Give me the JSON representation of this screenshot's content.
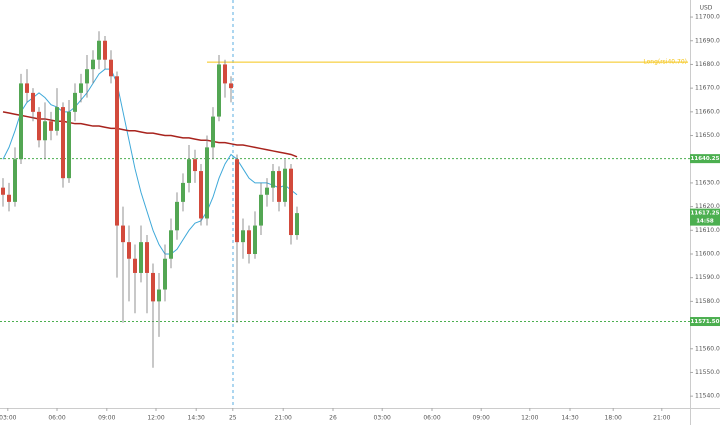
{
  "chart_data": {
    "type": "candlestick",
    "currency": "USD",
    "x": [
      0,
      1,
      2,
      3,
      4,
      5,
      6,
      7,
      8,
      9,
      10,
      11,
      12,
      13,
      14,
      15,
      16,
      17,
      18,
      19,
      20,
      21,
      22,
      23,
      24,
      25,
      26,
      27,
      28,
      29,
      30,
      31,
      32,
      33,
      34,
      35,
      36,
      37,
      38,
      39,
      40,
      41,
      42,
      43,
      44,
      45,
      46,
      47,
      48,
      49
    ],
    "open": [
      11628,
      11625,
      11622,
      11640,
      11672,
      11668,
      11660,
      11648,
      11656,
      11652,
      11662,
      11632,
      11660,
      11668,
      11672,
      11678,
      11682,
      11690,
      11682,
      11675,
      11612,
      11605,
      11598,
      11592,
      11605,
      11592,
      11580,
      11585,
      11598,
      11610,
      11622,
      11630,
      11640,
      11635,
      11615,
      11645,
      11658,
      11680,
      11672,
      11640,
      11605,
      11610,
      11600,
      11612,
      11625,
      11628,
      11635,
      11622,
      11636,
      11608
    ],
    "high": [
      11632,
      11630,
      11645,
      11676,
      11678,
      11670,
      11662,
      11664,
      11660,
      11670,
      11664,
      11665,
      11672,
      11676,
      11684,
      11686,
      11694,
      11692,
      11686,
      11677,
      11620,
      11612,
      11604,
      11612,
      11608,
      11596,
      11592,
      11604,
      11615,
      11626,
      11634,
      11646,
      11644,
      11638,
      11650,
      11662,
      11684,
      11682,
      11675,
      11642,
      11615,
      11612,
      11618,
      11630,
      11632,
      11638,
      11637,
      11640,
      11638,
      11620
    ],
    "low": [
      11620,
      11618,
      11620,
      11638,
      11664,
      11656,
      11645,
      11640,
      11648,
      11650,
      11628,
      11630,
      11656,
      11664,
      11666,
      11672,
      11678,
      11678,
      11672,
      11590,
      11571,
      11580,
      11575,
      11588,
      11575,
      11552,
      11565,
      11580,
      11594,
      11606,
      11618,
      11626,
      11630,
      11612,
      11612,
      11640,
      11656,
      11666,
      11664,
      11571,
      11598,
      11596,
      11598,
      11608,
      11620,
      11622,
      11618,
      11620,
      11604,
      11606
    ],
    "close": [
      11625,
      11622,
      11640,
      11672,
      11668,
      11660,
      11648,
      11656,
      11652,
      11662,
      11632,
      11660,
      11668,
      11672,
      11678,
      11682,
      11690,
      11682,
      11675,
      11612,
      11605,
      11598,
      11592,
      11605,
      11592,
      11580,
      11585,
      11598,
      11610,
      11622,
      11630,
      11640,
      11635,
      11615,
      11645,
      11658,
      11680,
      11672,
      11670,
      11605,
      11610,
      11600,
      11612,
      11625,
      11628,
      11635,
      11622,
      11636,
      11608,
      11617.25
    ],
    "up_color": "#53a653",
    "down_color": "#d24a3c",
    "lines": [
      {
        "color": "#3fa9d9",
        "values": [
          11640,
          11645,
          11652,
          11660,
          11664,
          11666,
          11668,
          11666,
          11663,
          11662,
          11660,
          11660,
          11662,
          11665,
          11668,
          11672,
          11676,
          11678,
          11678,
          11672,
          11660,
          11648,
          11636,
          11626,
          11618,
          11610,
          11604,
          11600,
          11600,
          11602,
          11606,
          11610,
          11613,
          11614,
          11618,
          11624,
          11632,
          11638,
          11642,
          11640,
          11636,
          11632,
          11630,
          11630,
          11630,
          11629,
          11628,
          11629,
          11627,
          11625
        ]
      },
      {
        "color": "#a8231d",
        "values": [
          11660,
          11659.5,
          11659,
          11658.5,
          11658,
          11657.5,
          11657,
          11657,
          11656.5,
          11656,
          11656,
          11655.5,
          11655,
          11655,
          11654.5,
          11654,
          11654,
          11653.5,
          11653,
          11653,
          11652.5,
          11652,
          11652,
          11651.5,
          11651,
          11651,
          11650.5,
          11650,
          11650,
          11649.5,
          11649,
          11649,
          11648.5,
          11648,
          11648,
          11647.5,
          11647,
          11647,
          11646.5,
          11646,
          11646,
          11645.5,
          11645,
          11644.5,
          11644,
          11643.5,
          11643,
          11642.5,
          11642,
          11641
        ]
      }
    ],
    "levels": [
      {
        "value": 11640.25,
        "label": "11640.25",
        "color": "#4caf50"
      },
      {
        "value": 11571.5,
        "label": "11571.50",
        "color": "#4caf50"
      }
    ],
    "last_price": {
      "value": 11617.25,
      "label": "11617.25",
      "countdown": "14:58",
      "color": "#4caf50"
    },
    "signal": {
      "value": 11681,
      "start": 34,
      "text": "Long(rsi40.70)",
      "color": "#f5c518"
    },
    "xlim": [
      -0.5,
      114.5
    ],
    "ylim": [
      11535,
      11707.2
    ],
    "yticks": [
      {
        "value": 11540,
        "label": "11540.00"
      },
      {
        "value": 11550,
        "label": "11550.00"
      },
      {
        "value": 11560,
        "label": "11560.00"
      },
      {
        "value": 11580,
        "label": "11580.00"
      },
      {
        "value": 11590,
        "label": "11590.00"
      },
      {
        "value": 11600,
        "label": "11600.00"
      },
      {
        "value": 11610,
        "label": "11610.00"
      },
      {
        "value": 11620,
        "label": "11620.00"
      },
      {
        "value": 11630,
        "label": "11630.00"
      },
      {
        "value": 11650,
        "label": "11650.00"
      },
      {
        "value": 11660,
        "label": "11660.00"
      },
      {
        "value": 11670,
        "label": "11670.00"
      },
      {
        "value": 11680,
        "label": "11680.00"
      },
      {
        "value": 11690,
        "label": "11690.00"
      },
      {
        "value": 11700,
        "label": "11700.00"
      }
    ],
    "xticks": [
      {
        "value": 0.8,
        "label": "03:00"
      },
      {
        "value": 9,
        "label": "06:00"
      },
      {
        "value": 17.3,
        "label": "09:00"
      },
      {
        "value": 25.5,
        "label": "12:00"
      },
      {
        "value": 32.2,
        "label": "14:30"
      },
      {
        "value": 38.3,
        "label": "25"
      },
      {
        "value": 46.7,
        "label": "21:00"
      },
      {
        "value": 55,
        "label": "26"
      },
      {
        "value": 63.2,
        "label": "03:00"
      },
      {
        "value": 71.5,
        "label": "06:00"
      },
      {
        "value": 79.7,
        "label": "09:00"
      },
      {
        "value": 87.8,
        "label": "12:00"
      },
      {
        "value": 94.5,
        "label": "14:30"
      },
      {
        "value": 101.7,
        "label": "18:00"
      },
      {
        "value": 109.8,
        "label": "21:00"
      }
    ]
  }
}
